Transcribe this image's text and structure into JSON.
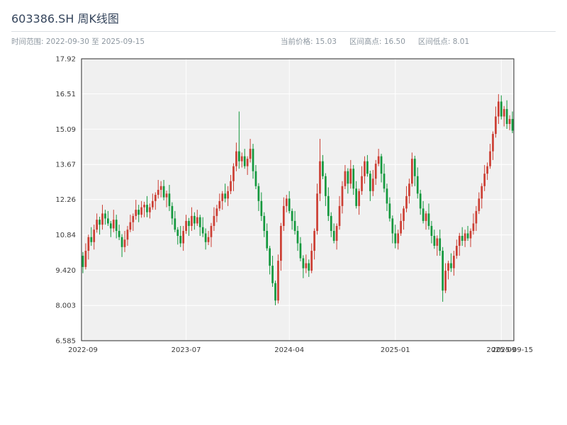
{
  "header": {
    "title": "603386.SH 周K线图",
    "date_range": "时间范围: 2022-09-30 至 2025-09-15",
    "current_price": "当前价格: 15.03",
    "range_high": "区间高点: 16.50",
    "range_low": "区间低点: 8.01"
  },
  "chart_data": {
    "type": "candlestick",
    "title": "603386.SH 周K线图",
    "symbol": "603386.SH",
    "interval": "weekly",
    "start_date": "2022-09-30",
    "end_date": "2025-09-15",
    "current_price": 15.03,
    "range_high": 16.5,
    "range_low": 8.01,
    "ylim": [
      6.585,
      17.92
    ],
    "yticks": [
      "6.585",
      "8.003",
      "9.420",
      "10.84",
      "12.26",
      "13.67",
      "15.09",
      "16.51",
      "17.92"
    ],
    "xticks": [
      {
        "index": 0,
        "label": "2022-09"
      },
      {
        "index": 37,
        "label": "2023-07"
      },
      {
        "index": 74,
        "label": "2024-04"
      },
      {
        "index": 112,
        "label": "2025-01"
      },
      {
        "index": 150,
        "label": "2025-09"
      },
      {
        "index": 154,
        "label": "2025-09-15"
      }
    ],
    "grid": true,
    "legend": "none",
    "colors": {
      "up": "#cc3e33",
      "down": "#13983d",
      "plot_bg": "#f0f0f0",
      "grid": "#ffffff",
      "frame": "#2b2b2b"
    },
    "open": [
      10.0,
      9.55,
      10.2,
      10.75,
      10.55,
      11.05,
      11.45,
      11.25,
      11.7,
      11.5,
      11.3,
      11.1,
      11.45,
      11.0,
      10.75,
      10.35,
      10.65,
      11.05,
      11.35,
      11.6,
      11.85,
      11.65,
      11.95,
      12.05,
      11.75,
      11.95,
      12.2,
      12.45,
      12.65,
      12.8,
      12.35,
      12.5,
      12.0,
      11.5,
      11.05,
      10.8,
      10.5,
      11.0,
      11.4,
      11.2,
      11.6,
      11.3,
      11.55,
      11.15,
      10.9,
      10.55,
      10.75,
      11.2,
      11.6,
      11.9,
      12.2,
      12.5,
      12.3,
      12.6,
      13.0,
      13.6,
      14.2,
      13.8,
      14.0,
      13.6,
      13.9,
      14.3,
      13.4,
      12.8,
      12.2,
      11.6,
      11.0,
      10.3,
      9.6,
      8.9,
      8.2,
      9.8,
      11.2,
      12.0,
      12.3,
      11.8,
      11.4,
      11.0,
      10.5,
      9.9,
      9.5,
      9.7,
      9.4,
      10.2,
      11.0,
      12.5,
      13.8,
      13.2,
      12.4,
      11.6,
      11.0,
      10.6,
      11.2,
      12.0,
      12.8,
      13.4,
      12.9,
      13.5,
      12.7,
      12.0,
      12.6,
      13.2,
      13.8,
      13.3,
      12.6,
      13.1,
      13.7,
      14.0,
      13.3,
      12.7,
      12.1,
      11.5,
      10.9,
      10.5,
      10.9,
      11.4,
      11.9,
      12.4,
      12.9,
      13.9,
      13.2,
      12.5,
      11.9,
      11.4,
      11.7,
      11.2,
      10.8,
      10.4,
      10.7,
      10.2,
      8.6,
      9.4,
      9.7,
      9.5,
      10.0,
      10.4,
      10.8,
      10.6,
      10.9,
      10.7,
      11.0,
      11.3,
      11.8,
      12.3,
      12.8,
      13.3,
      13.6,
      14.2,
      14.9,
      15.6,
      16.2,
      15.6,
      15.9,
      15.3,
      15.5
    ],
    "high": [
      10.15,
      10.5,
      10.85,
      11.15,
      11.25,
      11.7,
      11.57,
      12.05,
      11.85,
      11.8,
      11.4,
      11.85,
      11.65,
      11.25,
      10.87,
      11.0,
      11.2,
      11.65,
      11.7,
      12.25,
      12.05,
      12.2,
      12.17,
      12.4,
      12.1,
      12.5,
      12.55,
      13.05,
      13.0,
      13.05,
      12.62,
      12.85,
      12.15,
      11.8,
      11.15,
      11.2,
      11.2,
      11.65,
      11.52,
      11.95,
      11.75,
      11.85,
      11.65,
      11.55,
      11.1,
      11.0,
      11.32,
      11.95,
      12.05,
      12.5,
      12.6,
      12.9,
      12.8,
      13.25,
      13.72,
      14.55,
      15.8,
      14.15,
      14.3,
      14.0,
      14.7,
      14.5,
      13.65,
      12.92,
      12.55,
      11.75,
      11.3,
      10.4,
      10.0,
      9.0,
      10.05,
      11.32,
      12.35,
      12.45,
      12.6,
      11.9,
      11.8,
      11.2,
      10.75,
      10.02,
      10.05,
      9.85,
      10.5,
      11.1,
      12.9,
      14.7,
      14.05,
      13.32,
      12.75,
      11.75,
      11.3,
      11.3,
      12.4,
      13.0,
      13.65,
      13.52,
      13.85,
      13.65,
      13.0,
      12.7,
      13.6,
      14.0,
      14.05,
      13.42,
      13.45,
      13.85,
      14.3,
      14.1,
      13.7,
      12.9,
      12.35,
      11.62,
      11.25,
      11.05,
      11.7,
      12.0,
      12.8,
      13.1,
      14.15,
      14.02,
      13.55,
      12.65,
      12.2,
      11.8,
      12.1,
      11.4,
      11.05,
      10.82,
      11.05,
      10.35,
      9.7,
      9.8,
      10.1,
      10.2,
      10.65,
      10.92,
      11.15,
      11.05,
      11.2,
      11.1,
      11.7,
      12.0,
      12.55,
      12.92,
      13.65,
      13.75,
      14.5,
      15.0,
      16.0,
      16.5,
      16.45,
      16.02,
      16.25,
      15.65,
      15.8
    ],
    "low": [
      9.3,
      9.45,
      9.85,
      10.4,
      10.25,
      10.93,
      10.85,
      11.05,
      11.25,
      11.2,
      10.75,
      10.95,
      10.7,
      10.63,
      9.95,
      10.15,
      10.4,
      10.95,
      11.0,
      11.45,
      11.35,
      11.53,
      11.55,
      11.55,
      11.5,
      11.85,
      11.85,
      12.3,
      12.35,
      12.23,
      11.95,
      11.8,
      11.25,
      10.95,
      10.45,
      10.35,
      10.2,
      10.88,
      10.8,
      11.0,
      11.05,
      11.2,
      10.8,
      10.75,
      10.25,
      10.43,
      10.35,
      11.0,
      11.35,
      11.8,
      11.85,
      12.15,
      12.0,
      12.48,
      12.6,
      13.4,
      13.5,
      13.55,
      13.5,
      13.25,
      13.75,
      13.1,
      12.68,
      11.8,
      11.4,
      10.75,
      10.2,
      9.25,
      8.75,
      8.01,
      8.08,
      9.4,
      11.0,
      11.75,
      11.7,
      11.05,
      10.85,
      10.2,
      9.78,
      9.1,
      9.3,
      9.15,
      9.3,
      9.85,
      10.85,
      12.2,
      13.08,
      12.0,
      11.4,
      10.75,
      10.5,
      10.25,
      11.05,
      11.7,
      12.68,
      12.5,
      12.7,
      12.45,
      11.9,
      11.65,
      12.45,
      12.9,
      13.18,
      12.2,
      12.4,
      12.85,
      13.6,
      12.95,
      12.55,
      11.8,
      11.38,
      10.5,
      10.3,
      10.25,
      10.8,
      11.05,
      11.75,
      12.1,
      12.78,
      12.8,
      12.3,
      11.65,
      11.3,
      11.05,
      11.05,
      10.5,
      10.28,
      10.0,
      10.0,
      8.15,
      8.5,
      9.05,
      9.35,
      9.2,
      9.88,
      10.0,
      10.4,
      10.35,
      10.6,
      10.35,
      10.85,
      11.0,
      11.68,
      11.9,
      12.6,
      13.05,
      13.5,
      13.85,
      14.75,
      15.3,
      15.48,
      15.2,
      15.1,
      15.05,
      14.93
    ],
    "close": [
      9.55,
      10.2,
      10.75,
      10.55,
      11.05,
      11.45,
      11.25,
      11.7,
      11.5,
      11.3,
      11.1,
      11.45,
      11.0,
      10.75,
      10.35,
      10.65,
      11.05,
      11.35,
      11.6,
      11.85,
      11.65,
      11.95,
      12.05,
      11.75,
      11.95,
      12.2,
      12.45,
      12.65,
      12.8,
      12.35,
      12.5,
      12.0,
      11.5,
      11.05,
      10.8,
      10.5,
      11.0,
      11.4,
      11.2,
      11.6,
      11.3,
      11.55,
      11.15,
      10.9,
      10.55,
      10.75,
      11.2,
      11.6,
      11.9,
      12.2,
      12.5,
      12.3,
      12.6,
      13.0,
      13.6,
      14.2,
      13.8,
      14.0,
      13.6,
      13.9,
      14.3,
      13.4,
      12.8,
      12.2,
      11.6,
      11.0,
      10.3,
      9.6,
      8.9,
      8.2,
      9.8,
      11.2,
      12.0,
      12.3,
      11.8,
      11.4,
      11.0,
      10.5,
      9.9,
      9.5,
      9.7,
      9.4,
      10.2,
      11.0,
      12.5,
      13.8,
      13.2,
      12.4,
      11.6,
      11.0,
      10.6,
      11.2,
      12.0,
      12.8,
      13.4,
      12.9,
      13.5,
      12.7,
      12.0,
      12.6,
      13.2,
      13.8,
      13.3,
      12.6,
      13.1,
      13.7,
      14.0,
      13.3,
      12.7,
      12.1,
      11.5,
      10.9,
      10.5,
      10.9,
      11.4,
      11.9,
      12.4,
      12.9,
      13.9,
      13.2,
      12.5,
      11.9,
      11.4,
      11.7,
      11.2,
      10.8,
      10.4,
      10.7,
      10.2,
      8.6,
      9.4,
      9.7,
      9.5,
      10.0,
      10.4,
      10.8,
      10.6,
      10.9,
      10.7,
      11.0,
      11.3,
      11.8,
      12.3,
      12.8,
      13.3,
      13.6,
      14.2,
      14.9,
      15.6,
      16.2,
      15.6,
      15.9,
      15.3,
      15.5,
      15.03
    ]
  }
}
